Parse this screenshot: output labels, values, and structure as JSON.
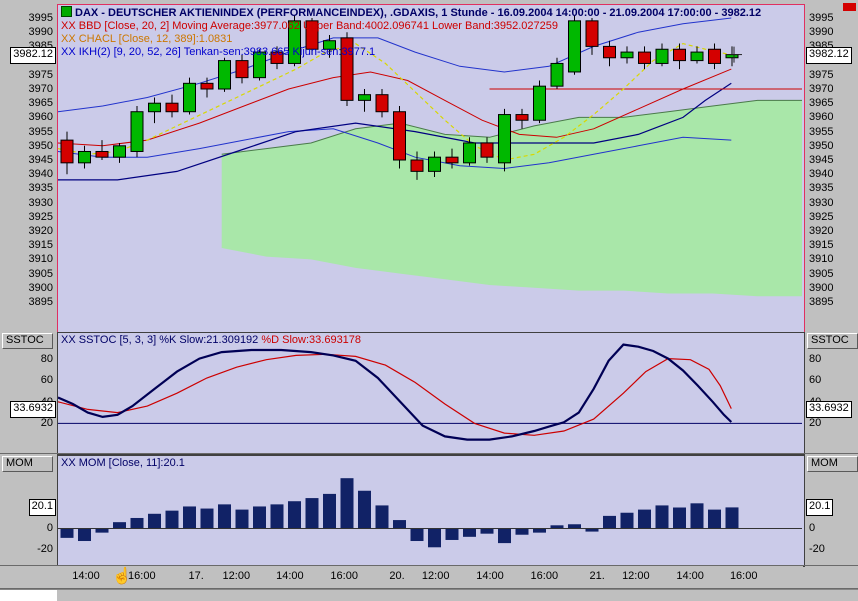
{
  "colors": {
    "window_bg": "#c0c0c0",
    "chart_bg": "#cbcbe9",
    "panel_border": "#e03060",
    "cloud": "#a9e7a9",
    "cloud_edge": "#4a7a4a",
    "candle_up": "#00b800",
    "candle_down": "#d40000",
    "band_blue": "#2233cc",
    "ma_red": "#cc0000",
    "ema_yellow": "#d8d800",
    "kijun_navy": "#000080",
    "k_navy": "#000055",
    "d_red": "#cc0000",
    "mom_bar": "#112266"
  },
  "icons": {
    "cursor": "☝"
  },
  "price_panel": {
    "legend_title": "DAX - DEUTSCHER AKTIENINDEX (PERFORMANCEINDEX), .GDAXIS, 1 Stunde - 16.09.2004 14:00:00 - 21.09.2004 17:00:00 - 3982.12",
    "legend_bbd": "XX BBD [Close, 20, 2] Moving Average:3977.062 Upper Band:4002.096741 Lower Band:3952.027259",
    "legend_chacl": "XX CHACL [Close, 12, 389]:1.0831",
    "legend_ikh": "XX IKH(2) [9, 20, 52, 26] Tenkan-sen:3983.665 Kijun-sen:3977.1",
    "current_label": "3982.12"
  },
  "sstoc_panel": {
    "label": "SSTOC",
    "legend_k": "XX SSTOC [5, 3, 3] %K Slow:21.309192 ",
    "legend_d": "%D Slow:33.693178",
    "current_label": "33.6932"
  },
  "mom_panel": {
    "label": "MOM",
    "legend": "XX MOM [Close, 11]:20.1",
    "current_label": "20.1"
  },
  "time_axis": {
    "labels": [
      {
        "text": "14:00",
        "f": 0.039
      },
      {
        "text": "16:00",
        "f": 0.114
      },
      {
        "text": "17.",
        "f": 0.187
      },
      {
        "text": "12:00",
        "f": 0.241
      },
      {
        "text": "14:00",
        "f": 0.313
      },
      {
        "text": "16:00",
        "f": 0.386
      },
      {
        "text": "20.",
        "f": 0.457
      },
      {
        "text": "12:00",
        "f": 0.509
      },
      {
        "text": "14:00",
        "f": 0.582
      },
      {
        "text": "16:00",
        "f": 0.655
      },
      {
        "text": "21.",
        "f": 0.726
      },
      {
        "text": "12:00",
        "f": 0.778
      },
      {
        "text": "14:00",
        "f": 0.851
      },
      {
        "text": "16:00",
        "f": 0.923
      }
    ]
  },
  "chart_data": [
    {
      "type": "candlestick",
      "title": "DAX - DEUTSCHER AKTIENINDEX (PERFORMANCEINDEX)",
      "symbol": ".GDAXIS",
      "interval": "1 Stunde",
      "range": "16.09.2004 14:00:00 - 21.09.2004 17:00:00",
      "last": 3982.12,
      "ylim": [
        3895,
        3995
      ],
      "yticks": [
        3995,
        3990,
        3985,
        3975,
        3970,
        3965,
        3960,
        3955,
        3950,
        3945,
        3940,
        3935,
        3930,
        3925,
        3920,
        3915,
        3910,
        3905,
        3900,
        3895
      ],
      "bollinger": {
        "source": "Close",
        "period": 20,
        "dev": 2,
        "moving_average": 3977.062,
        "upper_band": 4002.096741,
        "lower_band": 3952.027259
      },
      "ichimoku": {
        "params": [
          9,
          20,
          52,
          26
        ],
        "tenkan_sen": 3983.665,
        "kijun_sen": 3977.1
      },
      "candles": [
        [
          3952,
          3955,
          3940,
          3944
        ],
        [
          3944,
          3950,
          3942,
          3948
        ],
        [
          3948,
          3952,
          3945,
          3946
        ],
        [
          3946,
          3951,
          3944,
          3950
        ],
        [
          3948,
          3964,
          3946,
          3962
        ],
        [
          3962,
          3967,
          3958,
          3965
        ],
        [
          3965,
          3968,
          3960,
          3962
        ],
        [
          3962,
          3974,
          3961,
          3972
        ],
        [
          3972,
          3974,
          3967,
          3970
        ],
        [
          3970,
          3981,
          3969,
          3980
        ],
        [
          3980,
          3982,
          3972,
          3974
        ],
        [
          3974,
          3984,
          3973,
          3983
        ],
        [
          3983,
          3985,
          3977,
          3979
        ],
        [
          3979,
          3996,
          3978,
          3994
        ],
        [
          3994,
          3995,
          3982,
          3984
        ],
        [
          3984,
          3989,
          3981,
          3987
        ],
        [
          3988,
          3990,
          3964,
          3966
        ],
        [
          3966,
          3970,
          3962,
          3968
        ],
        [
          3968,
          3970,
          3960,
          3962
        ],
        [
          3962,
          3964,
          3942,
          3945
        ],
        [
          3945,
          3948,
          3938,
          3941
        ],
        [
          3941,
          3948,
          3939,
          3946
        ],
        [
          3946,
          3949,
          3942,
          3944
        ],
        [
          3944,
          3953,
          3943,
          3951
        ],
        [
          3951,
          3953,
          3944,
          3946
        ],
        [
          3944,
          3963,
          3941,
          3961
        ],
        [
          3961,
          3963,
          3956,
          3959
        ],
        [
          3959,
          3973,
          3958,
          3971
        ],
        [
          3971,
          3981,
          3970,
          3979
        ],
        [
          3976,
          3996,
          3975,
          3994
        ],
        [
          3994,
          3995,
          3982,
          3985
        ],
        [
          3985,
          3987,
          3978,
          3981
        ],
        [
          3981,
          3985,
          3979,
          3983
        ],
        [
          3983,
          3985,
          3977,
          3979
        ],
        [
          3979,
          3986,
          3978,
          3984
        ],
        [
          3984,
          3986,
          3977,
          3980
        ],
        [
          3980,
          3985,
          3979,
          3983
        ],
        [
          3984,
          3986,
          3977,
          3979
        ],
        [
          3981,
          3985,
          3978,
          3982.12
        ]
      ],
      "lines": {
        "upper_band": [
          [
            0,
            3962
          ],
          [
            0.06,
            3964
          ],
          [
            0.12,
            3967
          ],
          [
            0.19,
            3972
          ],
          [
            0.25,
            3977
          ],
          [
            0.31,
            3983
          ],
          [
            0.37,
            3988
          ],
          [
            0.43,
            3988
          ],
          [
            0.48,
            3983
          ],
          [
            0.54,
            3978
          ],
          [
            0.6,
            3976
          ],
          [
            0.66,
            3978
          ],
          [
            0.72,
            3985
          ],
          [
            0.78,
            3990
          ],
          [
            0.84,
            3993
          ],
          [
            0.905,
            3995
          ]
        ],
        "lower_band": [
          [
            0,
            3948
          ],
          [
            0.06,
            3946
          ],
          [
            0.12,
            3946
          ],
          [
            0.19,
            3949
          ],
          [
            0.25,
            3952
          ],
          [
            0.31,
            3955
          ],
          [
            0.37,
            3956
          ],
          [
            0.43,
            3951
          ],
          [
            0.48,
            3946
          ],
          [
            0.54,
            3943
          ],
          [
            0.6,
            3942
          ],
          [
            0.66,
            3944
          ],
          [
            0.72,
            3947
          ],
          [
            0.78,
            3950
          ],
          [
            0.84,
            3953
          ],
          [
            0.905,
            3952
          ]
        ],
        "ma_red": [
          [
            0,
            3951
          ],
          [
            0.06,
            3950
          ],
          [
            0.12,
            3952
          ],
          [
            0.19,
            3958
          ],
          [
            0.25,
            3964
          ],
          [
            0.31,
            3970
          ],
          [
            0.37,
            3974
          ],
          [
            0.42,
            3976
          ],
          [
            0.47,
            3973
          ],
          [
            0.52,
            3966
          ],
          [
            0.57,
            3959
          ],
          [
            0.62,
            3954
          ],
          [
            0.67,
            3953
          ],
          [
            0.72,
            3956
          ],
          [
            0.78,
            3963
          ],
          [
            0.84,
            3970
          ],
          [
            0.905,
            3977
          ]
        ],
        "ema_yellow": [
          [
            0,
            3949
          ],
          [
            0.04,
            3947
          ],
          [
            0.08,
            3948
          ],
          [
            0.12,
            3952
          ],
          [
            0.16,
            3957
          ],
          [
            0.2,
            3962
          ],
          [
            0.24,
            3967
          ],
          [
            0.28,
            3972
          ],
          [
            0.32,
            3977
          ],
          [
            0.36,
            3983
          ],
          [
            0.4,
            3986
          ],
          [
            0.44,
            3979
          ],
          [
            0.48,
            3969
          ],
          [
            0.52,
            3959
          ],
          [
            0.56,
            3950
          ],
          [
            0.6,
            3945
          ],
          [
            0.64,
            3947
          ],
          [
            0.68,
            3953
          ],
          [
            0.72,
            3961
          ],
          [
            0.76,
            3970
          ],
          [
            0.8,
            3980
          ],
          [
            0.84,
            3986
          ],
          [
            0.87,
            3984
          ],
          [
            0.905,
            3982
          ]
        ],
        "kijun_navy": [
          [
            0,
            3938
          ],
          [
            0.08,
            3938
          ],
          [
            0.16,
            3941
          ],
          [
            0.24,
            3948
          ],
          [
            0.32,
            3955
          ],
          [
            0.4,
            3958
          ],
          [
            0.48,
            3955
          ],
          [
            0.56,
            3951
          ],
          [
            0.64,
            3951
          ],
          [
            0.72,
            3951
          ],
          [
            0.78,
            3954
          ],
          [
            0.84,
            3960
          ],
          [
            0.87,
            3966
          ],
          [
            0.905,
            3972
          ]
        ],
        "flat_red": [
          [
            0.58,
            3970
          ],
          [
            1,
            3970
          ]
        ],
        "cloud_top": [
          [
            0.22,
            3947
          ],
          [
            0.28,
            3949
          ],
          [
            0.34,
            3951
          ],
          [
            0.4,
            3956
          ],
          [
            0.46,
            3958
          ],
          [
            0.52,
            3954
          ],
          [
            0.58,
            3953
          ],
          [
            0.64,
            3957
          ],
          [
            0.7,
            3960
          ],
          [
            0.76,
            3960
          ],
          [
            0.82,
            3962
          ],
          [
            0.88,
            3964
          ],
          [
            0.94,
            3966
          ],
          [
            1,
            3966
          ]
        ],
        "cloud_bottom": [
          [
            0.22,
            3914
          ],
          [
            0.28,
            3911
          ],
          [
            0.34,
            3910
          ],
          [
            0.4,
            3907
          ],
          [
            0.46,
            3905
          ],
          [
            0.52,
            3903
          ],
          [
            0.58,
            3901
          ],
          [
            0.64,
            3900
          ],
          [
            0.7,
            3899
          ],
          [
            0.76,
            3899
          ],
          [
            0.82,
            3898
          ],
          [
            0.88,
            3898
          ],
          [
            0.94,
            3897
          ],
          [
            1,
            3897
          ]
        ]
      }
    },
    {
      "type": "line",
      "name": "SSTOC",
      "params": [
        5,
        3,
        3
      ],
      "k_slow": 21.309192,
      "d_slow": 33.693178,
      "ylim": [
        0,
        100
      ],
      "yticks": [
        80,
        60,
        40,
        20
      ],
      "ref_level": 20,
      "k_points": [
        [
          0,
          44
        ],
        [
          0.02,
          38
        ],
        [
          0.04,
          30
        ],
        [
          0.06,
          26
        ],
        [
          0.08,
          28
        ],
        [
          0.1,
          36
        ],
        [
          0.13,
          52
        ],
        [
          0.16,
          68
        ],
        [
          0.19,
          80
        ],
        [
          0.22,
          86
        ],
        [
          0.26,
          88
        ],
        [
          0.3,
          88
        ],
        [
          0.34,
          86
        ],
        [
          0.37,
          83
        ],
        [
          0.4,
          78
        ],
        [
          0.43,
          62
        ],
        [
          0.46,
          40
        ],
        [
          0.49,
          18
        ],
        [
          0.52,
          8
        ],
        [
          0.55,
          5
        ],
        [
          0.58,
          5
        ],
        [
          0.61,
          8
        ],
        [
          0.64,
          13
        ],
        [
          0.66,
          17
        ],
        [
          0.68,
          21
        ],
        [
          0.7,
          30
        ],
        [
          0.72,
          52
        ],
        [
          0.74,
          78
        ],
        [
          0.76,
          93
        ],
        [
          0.78,
          91
        ],
        [
          0.8,
          87
        ],
        [
          0.82,
          80
        ],
        [
          0.84,
          69
        ],
        [
          0.86,
          55
        ],
        [
          0.88,
          40
        ],
        [
          0.895,
          28
        ],
        [
          0.905,
          21.31
        ]
      ],
      "d_points": [
        [
          0,
          40
        ],
        [
          0.04,
          33
        ],
        [
          0.08,
          30
        ],
        [
          0.12,
          36
        ],
        [
          0.16,
          48
        ],
        [
          0.2,
          62
        ],
        [
          0.24,
          72
        ],
        [
          0.28,
          79
        ],
        [
          0.32,
          83
        ],
        [
          0.36,
          84
        ],
        [
          0.4,
          82
        ],
        [
          0.44,
          74
        ],
        [
          0.48,
          58
        ],
        [
          0.52,
          38
        ],
        [
          0.56,
          20
        ],
        [
          0.6,
          11
        ],
        [
          0.64,
          9
        ],
        [
          0.68,
          13
        ],
        [
          0.72,
          24
        ],
        [
          0.76,
          48
        ],
        [
          0.79,
          68
        ],
        [
          0.82,
          80
        ],
        [
          0.85,
          79
        ],
        [
          0.875,
          70
        ],
        [
          0.89,
          55
        ],
        [
          0.905,
          33.69
        ]
      ]
    },
    {
      "type": "bar",
      "name": "MOM",
      "source": "Close",
      "period": 11,
      "last": 20.1,
      "yticks": [
        0,
        -20
      ],
      "values": [
        -9,
        -12,
        -4,
        6,
        10,
        14,
        17,
        21,
        19,
        23,
        18,
        21,
        23,
        26,
        29,
        33,
        48,
        36,
        22,
        8,
        -12,
        -18,
        -11,
        -8,
        -5,
        -14,
        -6,
        -4,
        3,
        4,
        -3,
        12,
        15,
        18,
        22,
        20,
        24,
        18,
        20.1
      ]
    }
  ]
}
